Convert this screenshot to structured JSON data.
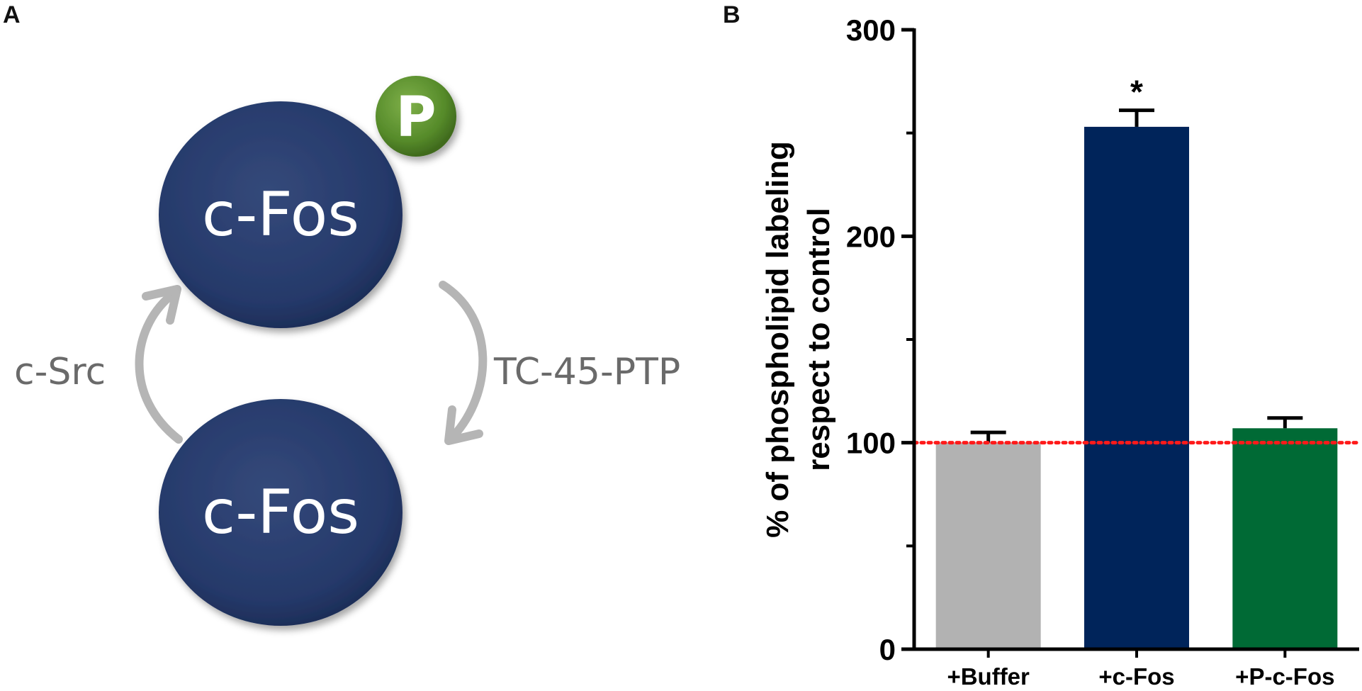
{
  "panels": {
    "a_label": "A",
    "b_label": "B"
  },
  "diagram": {
    "top_protein": "c-Fos",
    "bottom_protein": "c-Fos",
    "phospho_badge": "P",
    "left_enzyme": "c-Src",
    "right_enzyme": "TC-45-PTP",
    "colors": {
      "protein": "#2a3f6b",
      "badge": "#5a8a2e",
      "arrow": "#b5b5b5",
      "enzyme_text": "#6a6a6a"
    }
  },
  "chart_data": {
    "type": "bar",
    "categories": [
      "+Buffer",
      "+c-Fos",
      "+P-c-Fos"
    ],
    "values": [
      100,
      253,
      107
    ],
    "errors": [
      5,
      8,
      5
    ],
    "colors": [
      "#b2b2b2",
      "#00245a",
      "#006a35"
    ],
    "annotations": [
      "",
      "*",
      ""
    ],
    "ylabel_line1": "% of phospholipid labeling",
    "ylabel_line2": "respect to control",
    "ylim": [
      0,
      300
    ],
    "yticks_major": [
      0,
      100,
      200,
      300
    ],
    "yticks_minor": [
      50,
      150,
      250
    ],
    "reference_line": {
      "y": 100,
      "color": "#ff1a1a",
      "style": "dotted"
    },
    "grid": false
  }
}
